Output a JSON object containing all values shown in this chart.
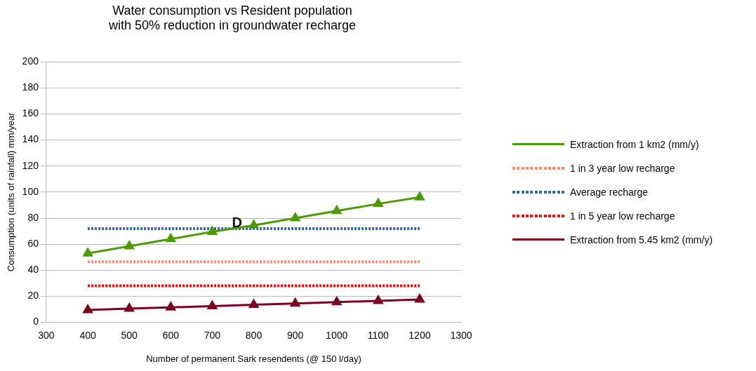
{
  "chart_data": {
    "type": "line",
    "title": "Water consumption vs Resident population\nwith 50% reduction in groundwater recharge",
    "xlabel": "Number of permanent Sark resendents (@ 150 l/day)",
    "ylabel": "Consumption (units of rainfall) mm/year",
    "x": [
      400,
      500,
      600,
      700,
      800,
      900,
      1000,
      1100,
      1200
    ],
    "series": [
      {
        "name": "Extraction from 1 km2 (mm/y)",
        "color": "#4e9a06",
        "marker": "triangle",
        "line_style": "solid",
        "values": [
          53,
          58.5,
          64,
          69.5,
          74.5,
          80,
          85.5,
          91,
          96
        ]
      },
      {
        "name": "1 in 3 year low recharge",
        "color": "#ff8c6e",
        "marker": "none",
        "line_style": "dotted",
        "values": [
          46.5,
          46.5,
          46.5,
          46.5,
          46.5,
          46.5,
          46.5,
          46.5,
          46.5
        ]
      },
      {
        "name": "Average recharge",
        "color": "#3465a4",
        "marker": "none",
        "line_style": "dotted",
        "values": [
          72,
          72,
          72,
          72,
          72,
          72,
          72,
          72,
          72
        ]
      },
      {
        "name": "1 in 5 year low recharge",
        "color": "#ff0000",
        "marker": "none",
        "line_style": "dotted",
        "values": [
          28,
          28,
          28,
          28,
          28,
          28,
          28,
          28,
          28
        ]
      },
      {
        "name": "Extraction from 5.45 km2 (mm/y)",
        "color": "#7b0020",
        "marker": "triangle",
        "line_style": "solid",
        "values": [
          9.5,
          10.5,
          11.5,
          12.5,
          13.5,
          14.5,
          15.5,
          16.5,
          17.5
        ]
      }
    ],
    "xlim": [
      300,
      1300
    ],
    "xticks": [
      300,
      400,
      500,
      600,
      700,
      800,
      900,
      1000,
      1100,
      1200,
      1300
    ],
    "ylim": [
      0,
      200
    ],
    "yticks": [
      0,
      20,
      40,
      60,
      80,
      100,
      120,
      140,
      160,
      180,
      200
    ],
    "grid": "y",
    "legend": "right",
    "annotations": [
      {
        "text": "D",
        "x": 760,
        "y": 76
      }
    ]
  }
}
